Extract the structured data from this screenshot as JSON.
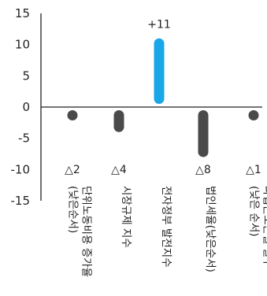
{
  "chart_data": {
    "type": "bar",
    "categories": [
      [
        "단위노동비용 증가율",
        "(낮은순서)"
      ],
      [
        "시장규제 지수"
      ],
      [
        "전자정부 발전지수"
      ],
      [
        "법인세율(낮은순서)"
      ],
      [
        "파업근로손실 일수",
        "(낮은 순서)"
      ]
    ],
    "values": [
      -2,
      -4,
      11,
      -8,
      -1
    ],
    "data_labels": [
      "△2",
      "△4",
      "+11",
      "△8",
      "△1"
    ],
    "ylim": [
      -15,
      15
    ],
    "yticks": [
      15,
      10,
      5,
      0,
      -5,
      -10,
      -15
    ],
    "grid": false,
    "colors": {
      "positive": "#1aa7e8",
      "negative": "#4a4a4a",
      "axis": "#222222"
    }
  }
}
